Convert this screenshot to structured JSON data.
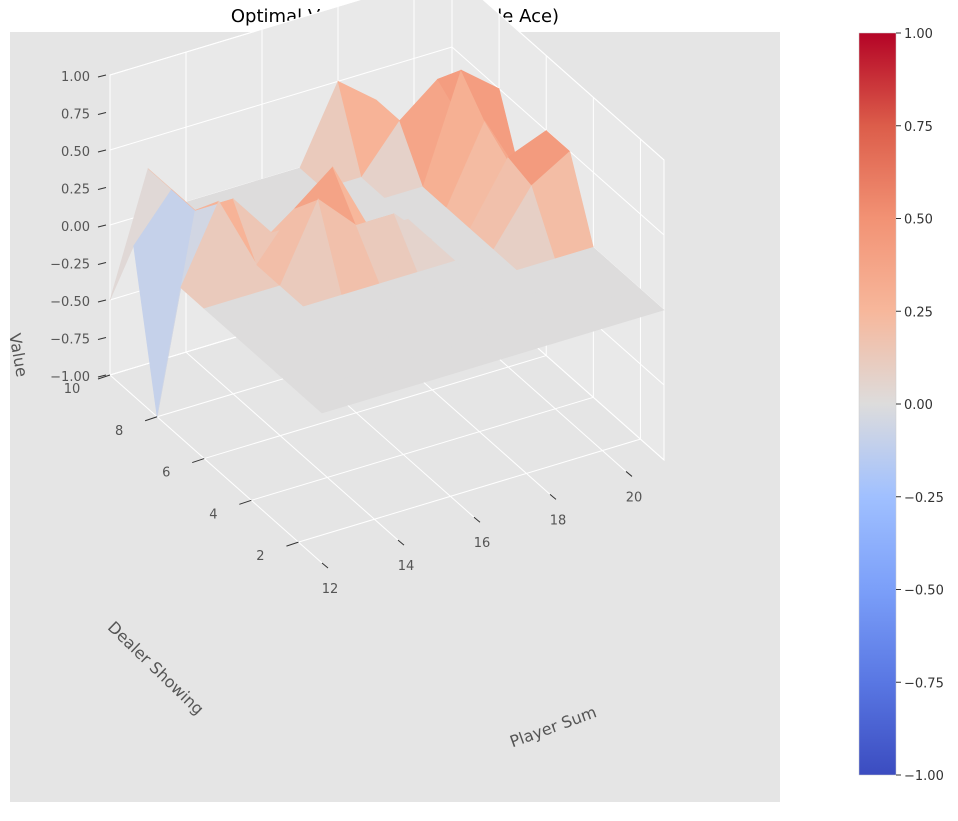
{
  "chart_data": {
    "type": "surface",
    "title": "Optimal Value Function (Usable Ace)",
    "xlabel": "Player Sum",
    "ylabel": "Dealer Showing",
    "zlabel": "Value",
    "x": [
      12,
      13,
      14,
      15,
      16,
      17,
      18,
      19,
      20,
      21
    ],
    "y": [
      1,
      2,
      3,
      4,
      5,
      6,
      7,
      8,
      9,
      10
    ],
    "x_ticks": [
      "12",
      "14",
      "16",
      "18",
      "20"
    ],
    "y_ticks": [
      "2",
      "4",
      "6",
      "8",
      "10"
    ],
    "z_ticks": [
      "1.00",
      "0.75",
      "0.50",
      "0.25",
      "0.00",
      "−0.25",
      "−0.50",
      "−0.75",
      "−1.00"
    ],
    "zlim": [
      -1,
      1
    ],
    "colormap": "coolwarm",
    "colorbar": {
      "ticks": [
        "1.00",
        "0.75",
        "0.50",
        "0.25",
        "0.00",
        "−0.25",
        "−0.50",
        "−0.75",
        "−1.00"
      ],
      "range": [
        -1,
        1
      ]
    },
    "surface_z_by_dealer_then_player": [
      [
        0,
        0,
        0,
        0,
        0,
        0,
        0,
        0,
        0,
        0
      ],
      [
        0,
        0,
        0,
        0,
        0,
        0,
        0,
        0,
        0,
        0
      ],
      [
        0,
        0,
        0,
        0,
        0,
        0,
        0,
        0,
        0,
        0
      ],
      [
        0,
        0,
        0,
        0,
        0,
        0,
        0,
        0,
        0,
        0
      ],
      [
        0,
        0,
        0,
        0,
        0,
        0,
        0,
        0,
        0.35,
        0.5
      ],
      [
        0,
        0,
        0,
        0.5,
        0.25,
        0.25,
        0,
        0,
        0.4,
        0.5
      ],
      [
        0,
        0.5,
        0,
        0.3,
        0.5,
        0,
        0,
        0,
        0.5,
        0
      ],
      [
        -1,
        0.3,
        0.3,
        0,
        0,
        0,
        0,
        0,
        0.7,
        0.5
      ],
      [
        0,
        0.3,
        0,
        0,
        0,
        0,
        0,
        0.3,
        0.5,
        0
      ],
      [
        -0.5,
        0.3,
        0,
        0,
        0,
        0,
        0.5,
        0.3,
        0,
        0
      ]
    ]
  },
  "colors": {
    "pane": "#e5e5e5",
    "grid": "#ffffff"
  }
}
